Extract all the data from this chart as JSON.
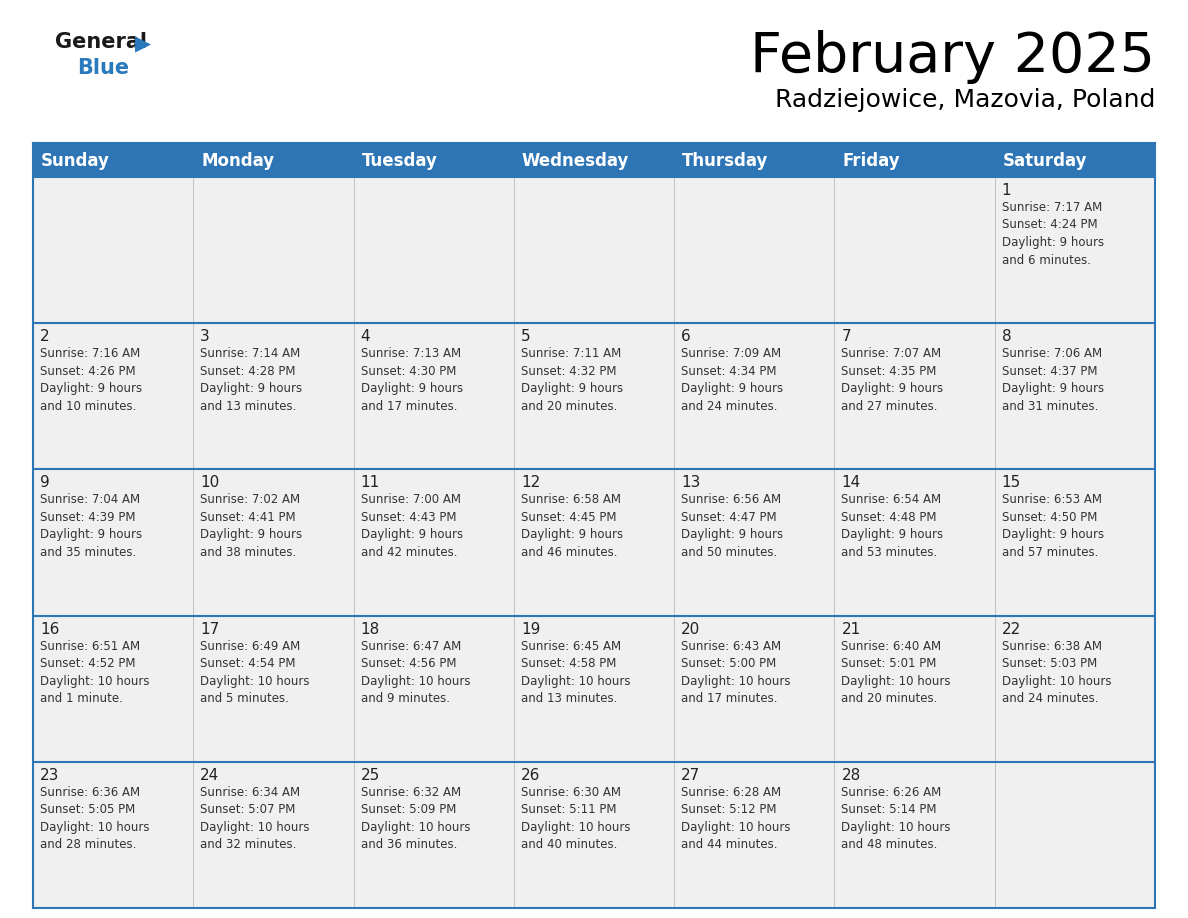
{
  "title": "February 2025",
  "subtitle": "Radziejowice, Mazovia, Poland",
  "header_bg": "#2E75B6",
  "header_text_color": "#FFFFFF",
  "cell_bg": "#F0F0F0",
  "border_color": "#2E75B6",
  "text_color": "#333333",
  "day_names": [
    "Sunday",
    "Monday",
    "Tuesday",
    "Wednesday",
    "Thursday",
    "Friday",
    "Saturday"
  ],
  "calendar": [
    [
      {
        "day": "",
        "info": ""
      },
      {
        "day": "",
        "info": ""
      },
      {
        "day": "",
        "info": ""
      },
      {
        "day": "",
        "info": ""
      },
      {
        "day": "",
        "info": ""
      },
      {
        "day": "",
        "info": ""
      },
      {
        "day": "1",
        "info": "Sunrise: 7:17 AM\nSunset: 4:24 PM\nDaylight: 9 hours\nand 6 minutes."
      }
    ],
    [
      {
        "day": "2",
        "info": "Sunrise: 7:16 AM\nSunset: 4:26 PM\nDaylight: 9 hours\nand 10 minutes."
      },
      {
        "day": "3",
        "info": "Sunrise: 7:14 AM\nSunset: 4:28 PM\nDaylight: 9 hours\nand 13 minutes."
      },
      {
        "day": "4",
        "info": "Sunrise: 7:13 AM\nSunset: 4:30 PM\nDaylight: 9 hours\nand 17 minutes."
      },
      {
        "day": "5",
        "info": "Sunrise: 7:11 AM\nSunset: 4:32 PM\nDaylight: 9 hours\nand 20 minutes."
      },
      {
        "day": "6",
        "info": "Sunrise: 7:09 AM\nSunset: 4:34 PM\nDaylight: 9 hours\nand 24 minutes."
      },
      {
        "day": "7",
        "info": "Sunrise: 7:07 AM\nSunset: 4:35 PM\nDaylight: 9 hours\nand 27 minutes."
      },
      {
        "day": "8",
        "info": "Sunrise: 7:06 AM\nSunset: 4:37 PM\nDaylight: 9 hours\nand 31 minutes."
      }
    ],
    [
      {
        "day": "9",
        "info": "Sunrise: 7:04 AM\nSunset: 4:39 PM\nDaylight: 9 hours\nand 35 minutes."
      },
      {
        "day": "10",
        "info": "Sunrise: 7:02 AM\nSunset: 4:41 PM\nDaylight: 9 hours\nand 38 minutes."
      },
      {
        "day": "11",
        "info": "Sunrise: 7:00 AM\nSunset: 4:43 PM\nDaylight: 9 hours\nand 42 minutes."
      },
      {
        "day": "12",
        "info": "Sunrise: 6:58 AM\nSunset: 4:45 PM\nDaylight: 9 hours\nand 46 minutes."
      },
      {
        "day": "13",
        "info": "Sunrise: 6:56 AM\nSunset: 4:47 PM\nDaylight: 9 hours\nand 50 minutes."
      },
      {
        "day": "14",
        "info": "Sunrise: 6:54 AM\nSunset: 4:48 PM\nDaylight: 9 hours\nand 53 minutes."
      },
      {
        "day": "15",
        "info": "Sunrise: 6:53 AM\nSunset: 4:50 PM\nDaylight: 9 hours\nand 57 minutes."
      }
    ],
    [
      {
        "day": "16",
        "info": "Sunrise: 6:51 AM\nSunset: 4:52 PM\nDaylight: 10 hours\nand 1 minute."
      },
      {
        "day": "17",
        "info": "Sunrise: 6:49 AM\nSunset: 4:54 PM\nDaylight: 10 hours\nand 5 minutes."
      },
      {
        "day": "18",
        "info": "Sunrise: 6:47 AM\nSunset: 4:56 PM\nDaylight: 10 hours\nand 9 minutes."
      },
      {
        "day": "19",
        "info": "Sunrise: 6:45 AM\nSunset: 4:58 PM\nDaylight: 10 hours\nand 13 minutes."
      },
      {
        "day": "20",
        "info": "Sunrise: 6:43 AM\nSunset: 5:00 PM\nDaylight: 10 hours\nand 17 minutes."
      },
      {
        "day": "21",
        "info": "Sunrise: 6:40 AM\nSunset: 5:01 PM\nDaylight: 10 hours\nand 20 minutes."
      },
      {
        "day": "22",
        "info": "Sunrise: 6:38 AM\nSunset: 5:03 PM\nDaylight: 10 hours\nand 24 minutes."
      }
    ],
    [
      {
        "day": "23",
        "info": "Sunrise: 6:36 AM\nSunset: 5:05 PM\nDaylight: 10 hours\nand 28 minutes."
      },
      {
        "day": "24",
        "info": "Sunrise: 6:34 AM\nSunset: 5:07 PM\nDaylight: 10 hours\nand 32 minutes."
      },
      {
        "day": "25",
        "info": "Sunrise: 6:32 AM\nSunset: 5:09 PM\nDaylight: 10 hours\nand 36 minutes."
      },
      {
        "day": "26",
        "info": "Sunrise: 6:30 AM\nSunset: 5:11 PM\nDaylight: 10 hours\nand 40 minutes."
      },
      {
        "day": "27",
        "info": "Sunrise: 6:28 AM\nSunset: 5:12 PM\nDaylight: 10 hours\nand 44 minutes."
      },
      {
        "day": "28",
        "info": "Sunrise: 6:26 AM\nSunset: 5:14 PM\nDaylight: 10 hours\nand 48 minutes."
      },
      {
        "day": "",
        "info": ""
      }
    ]
  ],
  "logo_general_color": "#1a1a1a",
  "logo_blue_color": "#2979BD",
  "logo_triangle_color": "#2979BD",
  "title_fontsize": 40,
  "subtitle_fontsize": 18,
  "header_fontsize": 12,
  "day_num_fontsize": 11,
  "info_fontsize": 8.5
}
